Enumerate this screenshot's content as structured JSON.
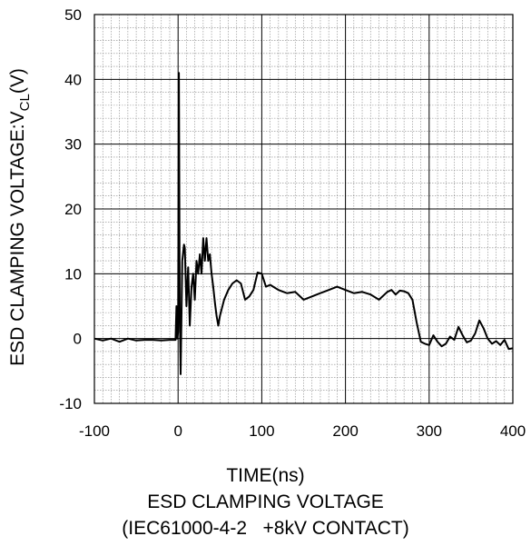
{
  "chart_data": {
    "type": "line",
    "title": "ESD CLAMPING VOLTAGE",
    "subtitle": "(IEC61000-4-2   +8kV CONTACT)",
    "xlabel": "TIME(ns)",
    "ylabel_main": "ESD CLAMPING VOLTAGE:V",
    "ylabel_sub": "CL",
    "ylabel_unit": "(V)",
    "xlim": [
      -100,
      400
    ],
    "ylim": [
      -10,
      50
    ],
    "x_ticks": [
      "-100",
      "0",
      "100",
      "200",
      "300",
      "400"
    ],
    "y_ticks": [
      "-10",
      "0",
      "10",
      "20",
      "30",
      "40",
      "50"
    ],
    "grid": true,
    "series": [
      {
        "color": "#000000",
        "x": [
          -100,
          -90,
          -80,
          -70,
          -60,
          -50,
          -40,
          -30,
          -20,
          -10,
          -3,
          -2,
          -1,
          0,
          1,
          2,
          3,
          4,
          5,
          7,
          8,
          10,
          12,
          14,
          16,
          18,
          20,
          22,
          24,
          26,
          28,
          30,
          32,
          34,
          36,
          38,
          40,
          42,
          44,
          46,
          48,
          50,
          55,
          60,
          65,
          70,
          75,
          80,
          85,
          90,
          95,
          100,
          105,
          110,
          120,
          130,
          140,
          150,
          160,
          170,
          180,
          190,
          200,
          210,
          220,
          230,
          240,
          250,
          255,
          260,
          265,
          270,
          275,
          280,
          285,
          290,
          295,
          300,
          305,
          310,
          315,
          320,
          325,
          330,
          335,
          340,
          345,
          350,
          355,
          360,
          365,
          370,
          375,
          380,
          385,
          390,
          395,
          400
        ],
        "y": [
          0,
          -0.3,
          0,
          -0.5,
          0,
          -0.3,
          -0.2,
          -0.2,
          -0.3,
          -0.2,
          -0.2,
          5,
          0,
          1,
          41,
          5,
          -5.5,
          3,
          12,
          14.5,
          14,
          5,
          11,
          2,
          8,
          10,
          6,
          12,
          10,
          13,
          10,
          15.5,
          12,
          15.5,
          12,
          13,
          10,
          8,
          5.5,
          3.5,
          2,
          3.5,
          6,
          7.5,
          8.5,
          9,
          8.5,
          6,
          6.5,
          7.5,
          10.2,
          10,
          8,
          8.3,
          7.5,
          7,
          7.2,
          6,
          6.5,
          7,
          7.5,
          8,
          7.5,
          7,
          7.2,
          6.8,
          6,
          7.2,
          7.5,
          6.8,
          7.4,
          7.3,
          7,
          6,
          2.5,
          -0.5,
          -0.8,
          -1,
          0.5,
          -0.5,
          -1.2,
          -0.8,
          0.3,
          -0.2,
          1.8,
          0.5,
          -0.6,
          -0.3,
          0.8,
          2.8,
          1.6,
          0,
          -0.8,
          -0.4,
          -1,
          -0.2,
          -1.6,
          -1.5
        ]
      }
    ]
  }
}
